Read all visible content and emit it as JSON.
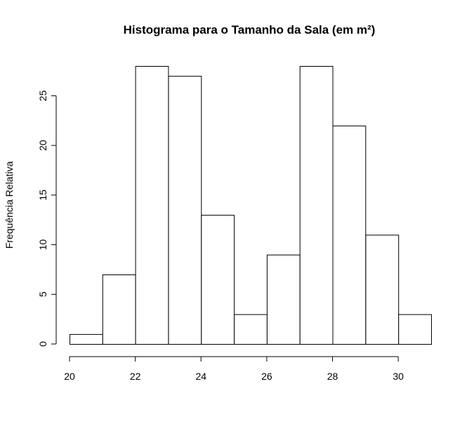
{
  "chart_data": {
    "type": "bar",
    "title": "Histograma para o Tamanho da Sala (em m²)",
    "xlabel": "",
    "ylabel": "Frequência Relativa",
    "bins": [
      {
        "start": 20,
        "end": 21,
        "value": 1
      },
      {
        "start": 21,
        "end": 22,
        "value": 7
      },
      {
        "start": 22,
        "end": 23,
        "value": 28
      },
      {
        "start": 23,
        "end": 24,
        "value": 27
      },
      {
        "start": 24,
        "end": 25,
        "value": 13
      },
      {
        "start": 25,
        "end": 26,
        "value": 3
      },
      {
        "start": 26,
        "end": 27,
        "value": 9
      },
      {
        "start": 27,
        "end": 28,
        "value": 28
      },
      {
        "start": 28,
        "end": 29,
        "value": 22
      },
      {
        "start": 29,
        "end": 30,
        "value": 11
      },
      {
        "start": 30,
        "end": 31,
        "value": 3
      }
    ],
    "xticks": [
      20,
      22,
      24,
      26,
      28,
      30
    ],
    "yticks": [
      0,
      5,
      10,
      15,
      20,
      25
    ],
    "xlim": [
      20,
      31
    ],
    "ylim": [
      0,
      28
    ],
    "grid": false,
    "legend": "none"
  }
}
